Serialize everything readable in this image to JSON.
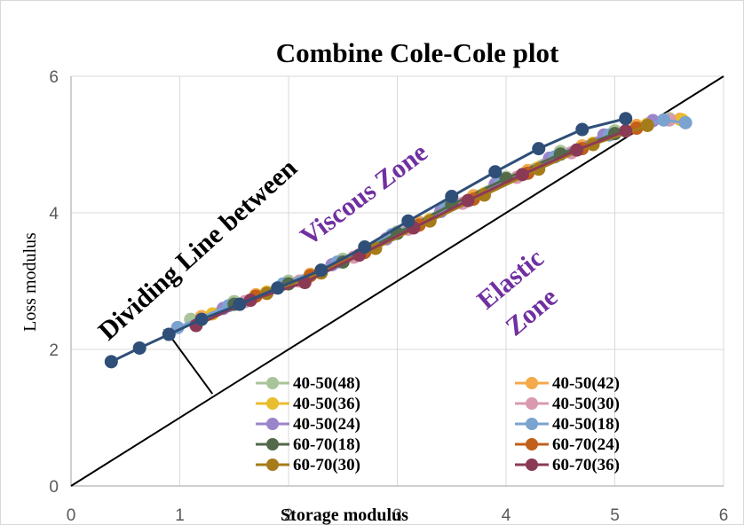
{
  "chart_data": {
    "type": "scatter",
    "title": "Combine Cole-Cole plot",
    "xlabel": "Storage modulus",
    "ylabel": "Loss modulus",
    "xlim": [
      0,
      6
    ],
    "ylim": [
      0,
      6
    ],
    "xticks": [
      "0",
      "1",
      "2",
      "3",
      "4",
      "5",
      "6"
    ],
    "yticks": [
      "0",
      "2",
      "4",
      "6"
    ],
    "grid": true,
    "legend_position": "bottom-right",
    "annotations": {
      "dividing_line": "Dividing Line between",
      "viscous_zone": "Viscous Zone",
      "elastic_zone_1": "Elastic",
      "elastic_zone_2": "Zone"
    },
    "dividing_line": {
      "x": [
        0,
        6
      ],
      "y": [
        0,
        6
      ]
    },
    "arrow": {
      "from": [
        1.3,
        1.35
      ],
      "to": [
        0.85,
        2.3
      ]
    },
    "series": [
      {
        "name": "40-50(48)",
        "color": "#a9c49a",
        "x": [
          1.1,
          1.5,
          2.0,
          2.5,
          3.0,
          3.5,
          4.0,
          4.5,
          5.0,
          5.5
        ],
        "y": [
          2.44,
          2.7,
          3.0,
          3.32,
          3.72,
          4.13,
          4.52,
          4.9,
          5.2,
          5.38
        ]
      },
      {
        "name": "40-50(42)",
        "color": "#f4a94b",
        "x": [
          1.2,
          1.7,
          2.2,
          2.7,
          3.2,
          3.7,
          4.2,
          4.7,
          5.2,
          5.6
        ],
        "y": [
          2.48,
          2.8,
          3.1,
          3.45,
          3.86,
          4.25,
          4.62,
          4.98,
          5.28,
          5.37
        ]
      },
      {
        "name": "40-50(36)",
        "color": "#e9bd2e",
        "x": [
          1.3,
          1.8,
          2.3,
          2.8,
          3.3,
          3.8,
          4.3,
          4.8,
          5.3,
          5.62
        ],
        "y": [
          2.52,
          2.84,
          3.14,
          3.5,
          3.9,
          4.28,
          4.66,
          5.02,
          5.3,
          5.36
        ]
      },
      {
        "name": "40-50(30)",
        "color": "#d99ab0",
        "x": [
          1.6,
          2.1,
          2.6,
          3.1,
          3.6,
          4.1,
          4.6,
          5.1,
          5.5
        ],
        "y": [
          2.7,
          3.0,
          3.35,
          3.76,
          4.14,
          4.52,
          4.88,
          5.2,
          5.36
        ]
      },
      {
        "name": "40-50(24)",
        "color": "#9b84c9",
        "x": [
          1.4,
          1.9,
          2.4,
          2.9,
          3.4,
          3.9,
          4.4,
          4.9,
          5.35
        ],
        "y": [
          2.6,
          2.9,
          3.24,
          3.62,
          4.02,
          4.42,
          4.8,
          5.14,
          5.35
        ]
      },
      {
        "name": "40-50(18)",
        "color": "#7ba3cf",
        "x": [
          0.98,
          1.45,
          1.95,
          2.45,
          2.95,
          3.45,
          3.95,
          4.45,
          4.95,
          5.45,
          5.65
        ],
        "y": [
          2.32,
          2.64,
          2.96,
          3.28,
          3.68,
          4.08,
          4.46,
          4.82,
          5.14,
          5.36,
          5.32
        ]
      },
      {
        "name": "60-70(18)",
        "color": "#52694a",
        "x": [
          1.5,
          2.0,
          2.5,
          3.0,
          3.5,
          4.0,
          4.5,
          5.0
        ],
        "y": [
          2.66,
          2.96,
          3.28,
          3.7,
          4.12,
          4.5,
          4.86,
          5.16
        ]
      },
      {
        "name": "60-70(24)",
        "color": "#c0601a",
        "x": [
          1.7,
          2.2,
          2.7,
          3.2,
          3.7,
          4.2,
          4.7,
          5.2
        ],
        "y": [
          2.78,
          3.08,
          3.42,
          3.82,
          4.2,
          4.58,
          4.94,
          5.24
        ]
      },
      {
        "name": "60-70(30)",
        "color": "#a57c19",
        "x": [
          1.8,
          2.3,
          2.8,
          3.3,
          3.8,
          4.3,
          4.8,
          5.3
        ],
        "y": [
          2.82,
          3.12,
          3.48,
          3.88,
          4.26,
          4.64,
          5.0,
          5.28
        ]
      },
      {
        "name": "60-70(36)",
        "color": "#8b3a56",
        "x": [
          1.15,
          1.65,
          2.15,
          2.65,
          3.15,
          3.65,
          4.15,
          4.65,
          5.1
        ],
        "y": [
          2.35,
          2.72,
          2.98,
          3.38,
          3.78,
          4.18,
          4.56,
          4.92,
          5.2
        ]
      },
      {
        "name": "",
        "color": "#2f4f78",
        "x": [
          0.37,
          0.63,
          0.9,
          1.2,
          1.55,
          1.9,
          2.3,
          2.7,
          3.1,
          3.5,
          3.9,
          4.3,
          4.7,
          5.1
        ],
        "y": [
          1.82,
          2.02,
          2.22,
          2.44,
          2.66,
          2.9,
          3.16,
          3.5,
          3.88,
          4.24,
          4.6,
          4.94,
          5.22,
          5.38
        ]
      }
    ]
  }
}
